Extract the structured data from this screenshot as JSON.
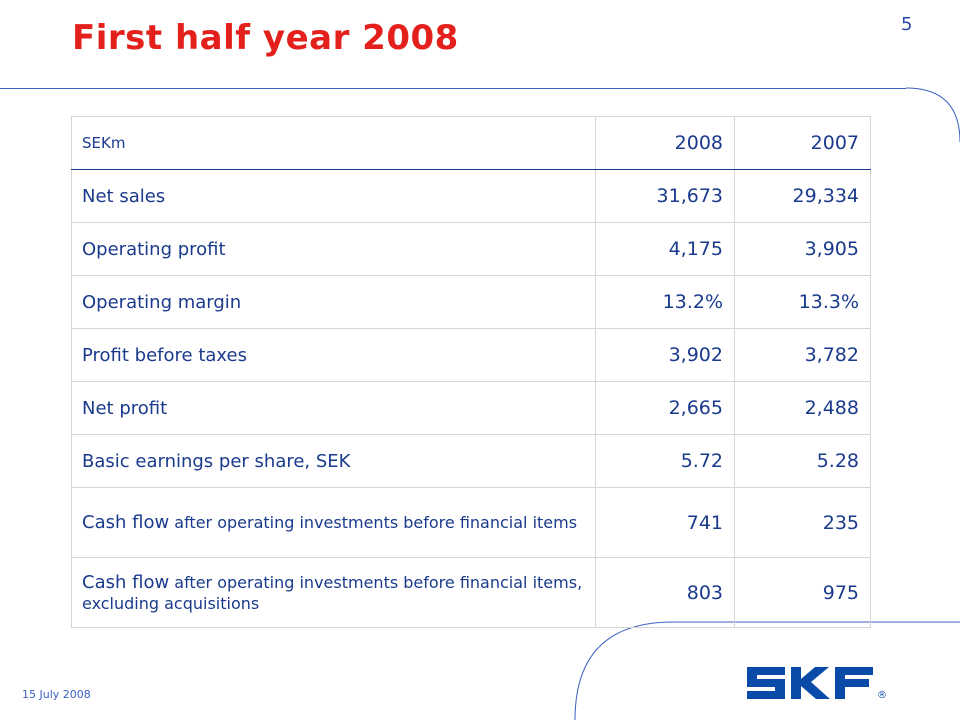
{
  "slide": {
    "title": "First half year 2008",
    "page_number": "5",
    "date": "15 July 2008"
  },
  "table": {
    "header": {
      "label": "SEKm",
      "col1": "2008",
      "col2": "2007"
    },
    "rows": [
      {
        "label": "Net sales",
        "v2008": "31,673",
        "v2007": "29,334"
      },
      {
        "label": "Operating profit",
        "v2008": "4,175",
        "v2007": "3,905"
      },
      {
        "label": "Operating margin",
        "v2008": "13.2%",
        "v2007": "13.3%"
      },
      {
        "label": "Profit before taxes",
        "v2008": "3,902",
        "v2007": "3,782"
      },
      {
        "label": "Net profit",
        "v2008": "2,665",
        "v2007": "2,488"
      },
      {
        "label": "Basic earnings per share, SEK",
        "v2008": "5.72",
        "v2007": "5.28"
      },
      {
        "label_main": "Cash flow",
        "label_rest": " after operating investments before financial items",
        "v2008": "741",
        "v2007": "235"
      },
      {
        "label_main": "Cash flow",
        "label_rest": " after operating investments before financial items, excluding acquisitions",
        "v2008": "803",
        "v2007": "975"
      }
    ]
  },
  "logo": {
    "text": "SKF",
    "registered": "®"
  },
  "colors": {
    "title": "#e3201b",
    "text": "#1a3a8c",
    "accent_line": "#3c61c2",
    "logo": "#0a4aa8"
  }
}
